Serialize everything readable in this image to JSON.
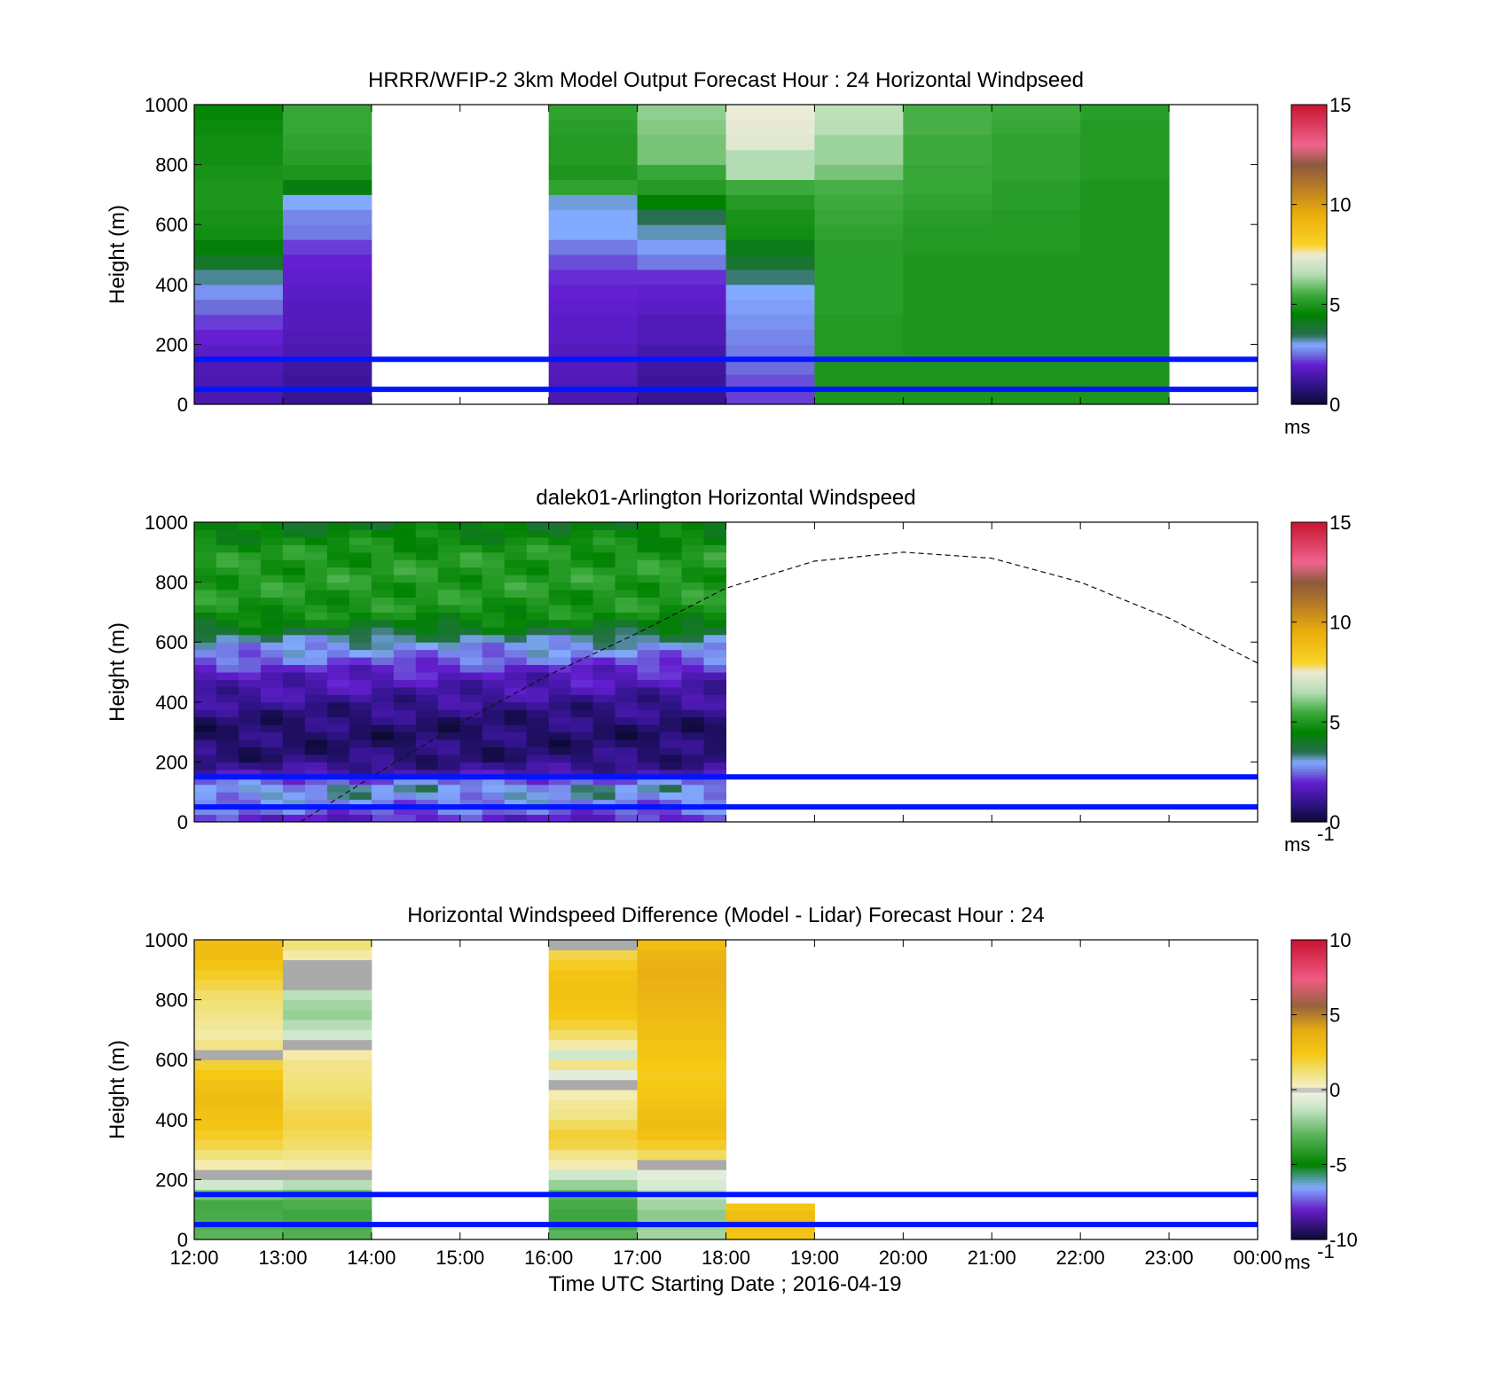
{
  "chart_data": [
    {
      "type": "heatmap",
      "title": "HRRR/WFIP-2 3km Model Output   Forecast Hour : 24 Horizontal Windpseed",
      "ylabel": "Height (m)",
      "xlabel": "",
      "x_ticks": [
        "12:00",
        "13:00",
        "14:00",
        "15:00",
        "16:00",
        "17:00",
        "18:00",
        "19:00",
        "20:00",
        "21:00",
        "22:00",
        "23:00",
        "00:00"
      ],
      "show_x_tick_labels": false,
      "y_ticks": [
        "0",
        "200",
        "400",
        "600",
        "800",
        "1000"
      ],
      "xlim_hours": [
        12,
        24
      ],
      "ylim": [
        0,
        1000
      ],
      "colorbar": {
        "scheme": "speed",
        "min": 0,
        "max": 15,
        "ticks": [
          "0",
          "5",
          "10",
          "15"
        ],
        "unit": "ms",
        "unit_sup": ""
      },
      "hlines": [
        50,
        150
      ],
      "column_hours": [
        12,
        13,
        16,
        17,
        18,
        19,
        20,
        21,
        22
      ],
      "column_values": [
        [
          1.5,
          1.5,
          1.6,
          1.8,
          2.0,
          2.2,
          2.5,
          2.8,
          3.3,
          4.0,
          4.4,
          4.8,
          4.9,
          5.0,
          5.0,
          4.9,
          4.8,
          4.8,
          4.7,
          4.6
        ],
        [
          1.1,
          1.2,
          1.3,
          1.5,
          1.6,
          1.7,
          1.7,
          1.8,
          1.9,
          2.0,
          2.2,
          2.6,
          2.7,
          3.0,
          4.3,
          5.0,
          5.2,
          5.3,
          5.4,
          5.4
        ],
        [
          1.5,
          1.6,
          1.7,
          1.7,
          1.8,
          1.8,
          1.9,
          2.0,
          2.1,
          2.3,
          2.6,
          3.0,
          3.0,
          3.1,
          5.3,
          5.0,
          5.1,
          5.1,
          5.2,
          5.3
        ],
        [
          1.1,
          1.2,
          1.3,
          1.4,
          1.6,
          1.6,
          1.8,
          1.9,
          2.1,
          2.6,
          2.9,
          3.2,
          3.5,
          4.5,
          5.1,
          5.4,
          6.0,
          6.0,
          6.1,
          6.2
        ],
        [
          2.2,
          2.3,
          2.5,
          2.6,
          2.7,
          2.8,
          2.9,
          3.0,
          3.4,
          3.9,
          4.2,
          4.8,
          4.9,
          5.1,
          5.5,
          6.5,
          6.5,
          7.3,
          7.4,
          7.5
        ],
        [
          5.0,
          5.0,
          5.0,
          5.1,
          5.1,
          5.1,
          5.2,
          5.2,
          5.2,
          5.2,
          5.2,
          5.3,
          5.4,
          5.5,
          5.6,
          6.0,
          6.3,
          6.3,
          6.6,
          6.7
        ],
        [
          5.0,
          5.0,
          5.0,
          5.0,
          5.0,
          5.0,
          5.0,
          5.0,
          5.0,
          5.0,
          5.1,
          5.1,
          5.2,
          5.3,
          5.4,
          5.4,
          5.5,
          5.5,
          5.6,
          5.6
        ],
        [
          5.0,
          5.0,
          5.0,
          5.0,
          5.0,
          5.0,
          5.0,
          5.0,
          5.0,
          5.0,
          5.1,
          5.1,
          5.1,
          5.2,
          5.2,
          5.3,
          5.3,
          5.3,
          5.4,
          5.5
        ],
        [
          5.0,
          5.0,
          5.0,
          5.0,
          5.0,
          5.0,
          5.0,
          5.0,
          5.0,
          5.0,
          5.0,
          5.0,
          5.0,
          5.0,
          5.0,
          5.1,
          5.1,
          5.1,
          5.1,
          5.2
        ]
      ]
    },
    {
      "type": "heatmap",
      "title": "dalek01-Arlington  Horizontal Windspeed",
      "ylabel": "Height (m)",
      "xlabel": "",
      "x_ticks": [
        "12:00",
        "13:00",
        "14:00",
        "15:00",
        "16:00",
        "17:00",
        "18:00",
        "19:00",
        "20:00",
        "21:00",
        "22:00",
        "23:00",
        "00:00"
      ],
      "show_x_tick_labels": false,
      "y_ticks": [
        "0",
        "200",
        "400",
        "600",
        "800",
        "1000"
      ],
      "xlim_hours": [
        12,
        24
      ],
      "ylim": [
        0,
        1000
      ],
      "colorbar": {
        "scheme": "speed",
        "min": 0,
        "max": 15,
        "ticks": [
          "0",
          "5",
          "10",
          "15"
        ],
        "unit": "ms",
        "unit_sup": "-1"
      },
      "hlines": [
        50,
        150
      ],
      "lidar_time_range_hours": [
        12,
        18
      ],
      "lidar_profile_heights": [
        0,
        25,
        50,
        75,
        100,
        125,
        150,
        175,
        200,
        250,
        300,
        350,
        400,
        450,
        500,
        550,
        600,
        650,
        700,
        800,
        900,
        1000
      ],
      "lidar_profile_values": [
        1.3,
        2.6,
        2.2,
        3.1,
        2.8,
        3.3,
        1.6,
        1.3,
        0.8,
        0.7,
        0.6,
        0.8,
        1.1,
        1.5,
        1.8,
        2.6,
        3.0,
        4.2,
        4.9,
        5.1,
        5.0,
        4.2
      ],
      "boundary_layer_curve": {
        "x_hours": [
          13.2,
          14,
          15,
          16,
          17,
          18,
          19,
          20,
          21,
          22,
          23,
          24
        ],
        "y_m": [
          0,
          150,
          330,
          490,
          630,
          780,
          870,
          900,
          880,
          800,
          680,
          530
        ]
      }
    },
    {
      "type": "heatmap",
      "title": "Horizontal Windspeed Difference (Model - Lidar) Forecast Hour : 24",
      "ylabel": "Height (m)",
      "xlabel": "Time UTC  Starting Date ; 2016-04-19",
      "x_ticks": [
        "12:00",
        "13:00",
        "14:00",
        "15:00",
        "16:00",
        "17:00",
        "18:00",
        "19:00",
        "20:00",
        "21:00",
        "22:00",
        "23:00",
        "00:00"
      ],
      "show_x_tick_labels": true,
      "y_ticks": [
        "0",
        "200",
        "400",
        "600",
        "800",
        "1000"
      ],
      "xlim_hours": [
        12,
        24
      ],
      "ylim": [
        0,
        1000
      ],
      "colorbar": {
        "scheme": "diff",
        "min": -10,
        "max": 10,
        "ticks": [
          "-10",
          "-5",
          "0",
          "5",
          "10"
        ],
        "unit": "ms",
        "unit_sup": "-1"
      },
      "hlines": [
        50,
        150
      ],
      "column_hours": [
        12,
        13,
        16,
        17,
        18
      ],
      "column_values": [
        [
          -3.0,
          -3.2,
          -3.4,
          -3.5,
          -2.5,
          -1.0,
          0.0,
          0.5,
          1.2,
          1.8,
          2.2,
          2.6,
          2.8,
          3.0,
          3.0,
          2.8,
          2.4,
          2.0,
          0.0,
          1.0,
          0.6,
          0.8,
          1.0,
          1.2,
          1.4,
          1.8,
          2.2,
          2.6,
          3.0,
          3.0
        ],
        [
          -3.2,
          -3.4,
          -3.6,
          -3.3,
          -2.8,
          -1.5,
          0.0,
          0.6,
          1.0,
          1.4,
          1.6,
          1.8,
          1.7,
          1.5,
          1.3,
          1.2,
          1.1,
          1.0,
          0.6,
          0.0,
          -1.0,
          -1.5,
          -2.0,
          -1.8,
          -1.4,
          0.0,
          0.0,
          0.0,
          0.6,
          1.2
        ],
        [
          -3.0,
          -3.5,
          -3.6,
          -3.4,
          -3.0,
          -2.0,
          -1.0,
          0.5,
          1.0,
          1.8,
          2.0,
          1.5,
          1.0,
          0.8,
          0.5,
          0.0,
          -0.5,
          1.0,
          -1.0,
          0.6,
          1.4,
          2.0,
          2.4,
          2.6,
          2.8,
          2.8,
          2.6,
          2.2,
          1.8,
          0.0
        ],
        [
          -1.8,
          -2.0,
          -2.2,
          -1.8,
          -1.4,
          -0.8,
          -0.5,
          0.0,
          1.5,
          2.2,
          2.8,
          3.0,
          2.9,
          2.7,
          2.5,
          2.4,
          2.3,
          2.4,
          2.5,
          2.7,
          2.9,
          3.0,
          3.1,
          3.3,
          3.4,
          3.6,
          3.7,
          3.6,
          3.4,
          3.0
        ],
        [
          2.5,
          2.8,
          3.0,
          3.0,
          2.5
        ]
      ],
      "column_top_m": [
        1000,
        1000,
        1000,
        1000,
        120
      ]
    }
  ]
}
